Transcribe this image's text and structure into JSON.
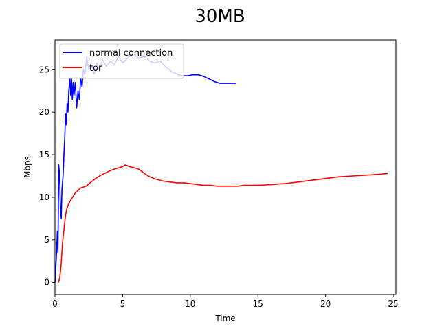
{
  "chart_data": {
    "type": "line",
    "title": "30MB",
    "xlabel": "Time",
    "ylabel": "Mbps",
    "xlim": [
      0,
      25.2
    ],
    "ylim": [
      -1.4,
      28.5
    ],
    "xticks": [
      0,
      5,
      10,
      15,
      20,
      25
    ],
    "yticks": [
      0,
      5,
      10,
      15,
      20,
      25
    ],
    "grid": false,
    "legend_position": "top-left",
    "series": [
      {
        "name": "normal connection",
        "color": "#0000ff",
        "points": [
          [
            0.0,
            0.0
          ],
          [
            0.1,
            3.0
          ],
          [
            0.18,
            6.0
          ],
          [
            0.22,
            3.5
          ],
          [
            0.28,
            13.8
          ],
          [
            0.34,
            12.5
          ],
          [
            0.4,
            9.0
          ],
          [
            0.46,
            7.5
          ],
          [
            0.52,
            11.0
          ],
          [
            0.6,
            12.5
          ],
          [
            0.66,
            15.0
          ],
          [
            0.72,
            17.0
          ],
          [
            0.78,
            19.8
          ],
          [
            0.84,
            18.5
          ],
          [
            0.9,
            21.0
          ],
          [
            0.96,
            20.0
          ],
          [
            1.02,
            22.5
          ],
          [
            1.1,
            24.0
          ],
          [
            1.16,
            22.0
          ],
          [
            1.22,
            24.0
          ],
          [
            1.28,
            21.5
          ],
          [
            1.34,
            23.5
          ],
          [
            1.4,
            22.0
          ],
          [
            1.5,
            23.5
          ],
          [
            1.6,
            20.5
          ],
          [
            1.7,
            22.5
          ],
          [
            1.8,
            21.5
          ],
          [
            1.9,
            24.0
          ],
          [
            2.0,
            23.0
          ],
          [
            2.1,
            25.0
          ],
          [
            2.2,
            24.5
          ],
          [
            2.35,
            26.5
          ],
          [
            2.5,
            25.0
          ],
          [
            2.7,
            25.5
          ],
          [
            2.9,
            24.5
          ],
          [
            3.1,
            25.8
          ],
          [
            3.3,
            24.8
          ],
          [
            3.5,
            26.2
          ],
          [
            3.8,
            25.4
          ],
          [
            4.1,
            26.0
          ],
          [
            4.4,
            25.6
          ],
          [
            4.7,
            26.6
          ],
          [
            5.0,
            25.8
          ],
          [
            5.4,
            26.4
          ],
          [
            5.8,
            26.9
          ],
          [
            6.2,
            26.3
          ],
          [
            6.6,
            26.6
          ],
          [
            7.0,
            26.0
          ],
          [
            7.4,
            25.8
          ],
          [
            7.8,
            26.0
          ],
          [
            8.2,
            25.3
          ],
          [
            8.6,
            24.8
          ],
          [
            9.0,
            24.5
          ],
          [
            9.4,
            24.3
          ],
          [
            9.8,
            24.3
          ],
          [
            10.2,
            24.4
          ],
          [
            10.6,
            24.4
          ],
          [
            11.0,
            24.2
          ],
          [
            11.4,
            23.9
          ],
          [
            11.8,
            23.6
          ],
          [
            12.2,
            23.4
          ],
          [
            12.6,
            23.4
          ],
          [
            13.0,
            23.4
          ],
          [
            13.4,
            23.4
          ]
        ]
      },
      {
        "name": "tor",
        "color": "#ff0000",
        "points": [
          [
            0.25,
            0.0
          ],
          [
            0.35,
            0.5
          ],
          [
            0.45,
            2.0
          ],
          [
            0.55,
            4.5
          ],
          [
            0.65,
            6.0
          ],
          [
            0.75,
            7.5
          ],
          [
            0.85,
            8.5
          ],
          [
            0.95,
            9.0
          ],
          [
            1.1,
            9.5
          ],
          [
            1.3,
            10.0
          ],
          [
            1.5,
            10.5
          ],
          [
            1.7,
            10.8
          ],
          [
            1.9,
            11.1
          ],
          [
            2.1,
            11.2
          ],
          [
            2.3,
            11.3
          ],
          [
            2.6,
            11.7
          ],
          [
            3.0,
            12.2
          ],
          [
            3.4,
            12.6
          ],
          [
            3.8,
            12.9
          ],
          [
            4.2,
            13.2
          ],
          [
            4.6,
            13.4
          ],
          [
            5.0,
            13.6
          ],
          [
            5.2,
            13.8
          ],
          [
            5.5,
            13.6
          ],
          [
            5.8,
            13.5
          ],
          [
            6.2,
            13.3
          ],
          [
            6.6,
            12.8
          ],
          [
            7.0,
            12.4
          ],
          [
            7.5,
            12.1
          ],
          [
            8.0,
            11.9
          ],
          [
            8.5,
            11.8
          ],
          [
            9.0,
            11.7
          ],
          [
            9.5,
            11.7
          ],
          [
            10.0,
            11.6
          ],
          [
            10.5,
            11.5
          ],
          [
            11.0,
            11.4
          ],
          [
            11.5,
            11.4
          ],
          [
            12.0,
            11.3
          ],
          [
            12.5,
            11.3
          ],
          [
            13.0,
            11.3
          ],
          [
            13.5,
            11.3
          ],
          [
            14.0,
            11.4
          ],
          [
            15.0,
            11.4
          ],
          [
            16.0,
            11.5
          ],
          [
            17.0,
            11.6
          ],
          [
            18.0,
            11.8
          ],
          [
            19.0,
            12.0
          ],
          [
            20.0,
            12.2
          ],
          [
            21.0,
            12.4
          ],
          [
            22.0,
            12.5
          ],
          [
            23.0,
            12.6
          ],
          [
            24.0,
            12.7
          ],
          [
            24.6,
            12.8
          ]
        ]
      }
    ]
  }
}
